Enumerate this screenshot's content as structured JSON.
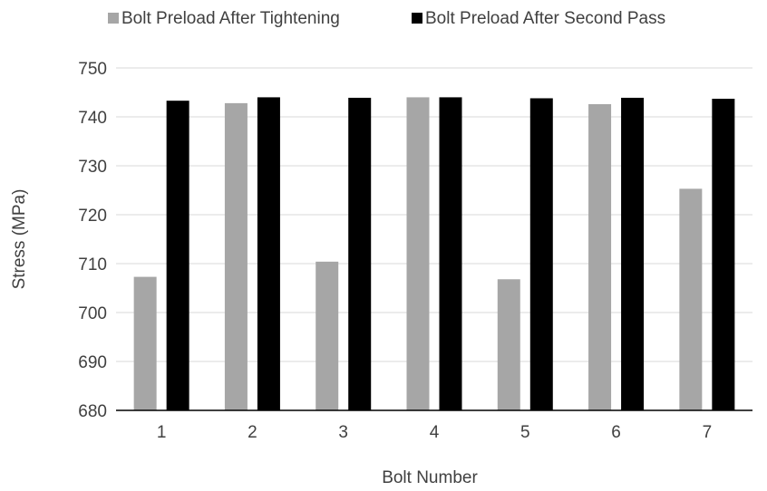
{
  "chart_data": {
    "type": "bar",
    "title": "",
    "xlabel": "Bolt Number",
    "ylabel": "Stress (MPa)",
    "ylim": [
      680,
      750
    ],
    "yticks": [
      680,
      690,
      700,
      710,
      720,
      730,
      740,
      750
    ],
    "categories": [
      "1",
      "2",
      "3",
      "4",
      "5",
      "6",
      "7"
    ],
    "series": [
      {
        "name": "Bolt Preload After Tightening",
        "color": "#a6a6a6",
        "values": [
          707.3,
          742.8,
          710.4,
          744.0,
          706.8,
          742.6,
          725.3
        ]
      },
      {
        "name": "Bolt Preload After Second Pass",
        "color": "#000000",
        "values": [
          743.3,
          744.0,
          743.9,
          744.0,
          743.8,
          743.9,
          743.7
        ]
      }
    ],
    "grid": true,
    "legend_position": "top"
  }
}
